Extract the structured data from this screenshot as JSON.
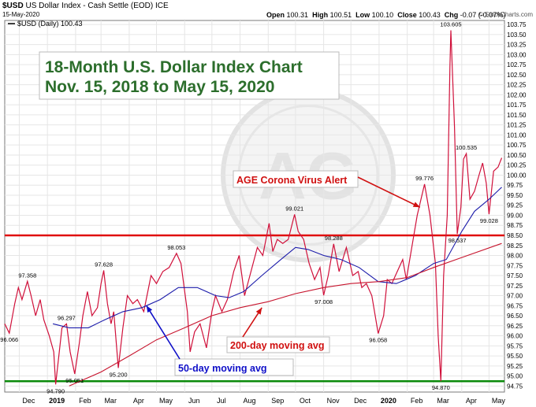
{
  "header": {
    "symbol": "$USD",
    "name": "US Dollar Index - Cash Settle (EOD)",
    "exchange": "ICE",
    "date": "15-May-2020",
    "open_label": "Open",
    "open": "100.31",
    "high_label": "High",
    "high": "100.51",
    "low_label": "Low",
    "low": "100.10",
    "close_label": "Close",
    "close": "100.43",
    "chg_label": "Chg",
    "chg": "-0.07 (-0.07%)",
    "brand": "© StockCharts.com"
  },
  "chart_data": {
    "type": "line",
    "legend": "$USD (Daily) 100.43",
    "title": "18-Month U.S. Dollar Index Chart",
    "subtitle": "Nov. 15, 2018 to May 15, 2020",
    "ylim": [
      94.6,
      103.85
    ],
    "xlim": [
      "2018-11-15",
      "2020-05-18"
    ],
    "grid": true,
    "y_ticks": [
      "94.75",
      "95.00",
      "95.25",
      "95.50",
      "95.75",
      "96.00",
      "96.25",
      "96.50",
      "96.75",
      "97.00",
      "97.25",
      "97.50",
      "97.75",
      "98.00",
      "98.25",
      "98.50",
      "98.75",
      "99.00",
      "99.25",
      "99.50",
      "99.75",
      "100.00",
      "100.25",
      "100.50",
      "100.75",
      "101.00",
      "101.25",
      "101.50",
      "101.75",
      "102.00",
      "102.25",
      "102.50",
      "102.75",
      "103.00",
      "103.25",
      "103.50",
      "103.75"
    ],
    "x_ticks": [
      {
        "label": "Dec",
        "date": "2018-12-01",
        "bold": false
      },
      {
        "label": "2019",
        "date": "2019-01-01",
        "bold": true
      },
      {
        "label": "Feb",
        "date": "2019-02-01",
        "bold": false
      },
      {
        "label": "Mar",
        "date": "2019-03-01",
        "bold": false
      },
      {
        "label": "Apr",
        "date": "2019-04-01",
        "bold": false
      },
      {
        "label": "May",
        "date": "2019-05-01",
        "bold": false
      },
      {
        "label": "Jun",
        "date": "2019-06-01",
        "bold": false
      },
      {
        "label": "Jul",
        "date": "2019-07-01",
        "bold": false
      },
      {
        "label": "Aug",
        "date": "2019-08-01",
        "bold": false
      },
      {
        "label": "Sep",
        "date": "2019-09-01",
        "bold": false
      },
      {
        "label": "Oct",
        "date": "2019-10-01",
        "bold": false
      },
      {
        "label": "Nov",
        "date": "2019-11-01",
        "bold": false
      },
      {
        "label": "Dec",
        "date": "2019-12-01",
        "bold": false
      },
      {
        "label": "2020",
        "date": "2020-01-01",
        "bold": true
      },
      {
        "label": "Feb",
        "date": "2020-02-01",
        "bold": false
      },
      {
        "label": "Mar",
        "date": "2020-03-01",
        "bold": false
      },
      {
        "label": "Apr",
        "date": "2020-04-01",
        "bold": false
      },
      {
        "label": "May",
        "date": "2020-05-01",
        "bold": false
      }
    ],
    "series": [
      {
        "name": "$USD (Daily)",
        "color": "#d0103a",
        "points": [
          [
            "2018-11-15",
            96.3
          ],
          [
            "2018-11-20",
            96.066
          ],
          [
            "2018-11-26",
            96.8
          ],
          [
            "2018-11-30",
            97.2
          ],
          [
            "2018-12-04",
            96.9
          ],
          [
            "2018-12-10",
            97.358
          ],
          [
            "2018-12-14",
            97.0
          ],
          [
            "2018-12-19",
            96.5
          ],
          [
            "2018-12-24",
            96.9
          ],
          [
            "2018-12-28",
            96.4
          ],
          [
            "2019-01-03",
            96.0
          ],
          [
            "2019-01-08",
            95.6
          ],
          [
            "2019-01-10",
            94.79
          ],
          [
            "2019-01-14",
            95.6
          ],
          [
            "2019-01-17",
            96.2
          ],
          [
            "2019-01-22",
            96.297
          ],
          [
            "2019-01-26",
            95.6
          ],
          [
            "2019-01-31",
            95.051
          ],
          [
            "2019-02-05",
            95.8
          ],
          [
            "2019-02-09",
            96.5
          ],
          [
            "2019-02-14",
            97.1
          ],
          [
            "2019-02-19",
            96.5
          ],
          [
            "2019-02-25",
            96.7
          ],
          [
            "2019-03-01",
            97.3
          ],
          [
            "2019-03-04",
            97.628
          ],
          [
            "2019-03-08",
            96.8
          ],
          [
            "2019-03-12",
            96.3
          ],
          [
            "2019-03-15",
            96.6
          ],
          [
            "2019-03-20",
            95.2
          ],
          [
            "2019-03-25",
            96.2
          ],
          [
            "2019-03-30",
            97.0
          ],
          [
            "2019-04-05",
            96.8
          ],
          [
            "2019-04-10",
            96.9
          ],
          [
            "2019-04-17",
            96.6
          ],
          [
            "2019-04-25",
            97.5
          ],
          [
            "2019-05-01",
            97.3
          ],
          [
            "2019-05-08",
            97.6
          ],
          [
            "2019-05-15",
            97.7
          ],
          [
            "2019-05-23",
            98.053
          ],
          [
            "2019-05-28",
            97.8
          ],
          [
            "2019-06-04",
            96.6
          ],
          [
            "2019-06-07",
            95.6
          ],
          [
            "2019-06-12",
            96.1
          ],
          [
            "2019-06-18",
            96.3
          ],
          [
            "2019-06-25",
            95.7
          ],
          [
            "2019-07-01",
            96.6
          ],
          [
            "2019-07-05",
            97.0
          ],
          [
            "2019-07-12",
            96.6
          ],
          [
            "2019-07-18",
            96.9
          ],
          [
            "2019-07-25",
            97.6
          ],
          [
            "2019-07-31",
            98.0
          ],
          [
            "2019-08-06",
            97.0
          ],
          [
            "2019-08-13",
            97.6
          ],
          [
            "2019-08-20",
            98.2
          ],
          [
            "2019-08-26",
            98.0
          ],
          [
            "2019-09-02",
            98.8
          ],
          [
            "2019-09-06",
            98.1
          ],
          [
            "2019-09-11",
            98.4
          ],
          [
            "2019-09-17",
            98.3
          ],
          [
            "2019-09-23",
            98.4
          ],
          [
            "2019-09-30",
            99.021
          ],
          [
            "2019-10-04",
            98.6
          ],
          [
            "2019-10-10",
            98.4
          ],
          [
            "2019-10-16",
            97.8
          ],
          [
            "2019-10-22",
            97.4
          ],
          [
            "2019-10-28",
            97.7
          ],
          [
            "2019-11-01",
            97.008
          ],
          [
            "2019-11-06",
            97.5
          ],
          [
            "2019-11-12",
            98.288
          ],
          [
            "2019-11-18",
            97.6
          ],
          [
            "2019-11-26",
            98.2
          ],
          [
            "2019-12-03",
            97.5
          ],
          [
            "2019-12-09",
            97.6
          ],
          [
            "2019-12-13",
            97.2
          ],
          [
            "2019-12-18",
            97.3
          ],
          [
            "2019-12-24",
            97.0
          ],
          [
            "2019-12-31",
            96.058
          ],
          [
            "2020-01-06",
            96.5
          ],
          [
            "2020-01-10",
            97.4
          ],
          [
            "2020-01-15",
            97.3
          ],
          [
            "2020-01-21",
            97.6
          ],
          [
            "2020-01-27",
            97.9
          ],
          [
            "2020-01-31",
            97.4
          ],
          [
            "2020-02-06",
            98.2
          ],
          [
            "2020-02-12",
            99.0
          ],
          [
            "2020-02-20",
            99.776
          ],
          [
            "2020-02-26",
            99.0
          ],
          [
            "2020-03-03",
            97.8
          ],
          [
            "2020-03-06",
            96.0
          ],
          [
            "2020-03-09",
            94.87
          ],
          [
            "2020-03-12",
            97.5
          ],
          [
            "2020-03-16",
            99.0
          ],
          [
            "2020-03-19",
            102.7
          ],
          [
            "2020-03-20",
            103.605
          ],
          [
            "2020-03-24",
            101.2
          ],
          [
            "2020-03-27",
            98.537
          ],
          [
            "2020-03-31",
            99.2
          ],
          [
            "2020-04-03",
            100.4
          ],
          [
            "2020-04-06",
            100.535
          ],
          [
            "2020-04-10",
            99.4
          ],
          [
            "2020-04-15",
            99.6
          ],
          [
            "2020-04-20",
            100.0
          ],
          [
            "2020-04-24",
            100.3
          ],
          [
            "2020-04-28",
            99.8
          ],
          [
            "2020-05-01",
            99.028
          ],
          [
            "2020-05-06",
            100.1
          ],
          [
            "2020-05-11",
            100.2
          ],
          [
            "2020-05-15",
            100.43
          ]
        ]
      },
      {
        "name": "50-day moving avg",
        "color": "#1b1baa",
        "points": [
          [
            "2019-01-07",
            96.3
          ],
          [
            "2019-01-25",
            96.2
          ],
          [
            "2019-02-15",
            96.2
          ],
          [
            "2019-03-05",
            96.4
          ],
          [
            "2019-03-25",
            96.6
          ],
          [
            "2019-04-15",
            96.7
          ],
          [
            "2019-05-05",
            96.9
          ],
          [
            "2019-05-25",
            97.2
          ],
          [
            "2019-06-15",
            97.2
          ],
          [
            "2019-07-05",
            97.0
          ],
          [
            "2019-07-20",
            96.95
          ],
          [
            "2019-08-05",
            97.1
          ],
          [
            "2019-08-25",
            97.5
          ],
          [
            "2019-09-15",
            97.9
          ],
          [
            "2019-10-01",
            98.2
          ],
          [
            "2019-10-15",
            98.15
          ],
          [
            "2019-11-01",
            98.0
          ],
          [
            "2019-11-20",
            97.9
          ],
          [
            "2019-12-10",
            97.7
          ],
          [
            "2019-12-31",
            97.35
          ],
          [
            "2020-01-20",
            97.3
          ],
          [
            "2020-02-10",
            97.5
          ],
          [
            "2020-03-01",
            97.8
          ],
          [
            "2020-03-15",
            97.9
          ],
          [
            "2020-04-01",
            98.6
          ],
          [
            "2020-04-15",
            99.1
          ],
          [
            "2020-05-01",
            99.4
          ],
          [
            "2020-05-15",
            99.7
          ]
        ]
      },
      {
        "name": "200-day moving avg",
        "color": "#c7152e",
        "points": [
          [
            "2019-01-25",
            94.75
          ],
          [
            "2019-03-01",
            95.1
          ],
          [
            "2019-04-01",
            95.5
          ],
          [
            "2019-05-01",
            95.9
          ],
          [
            "2019-06-01",
            96.2
          ],
          [
            "2019-07-01",
            96.5
          ],
          [
            "2019-08-01",
            96.7
          ],
          [
            "2019-09-01",
            96.85
          ],
          [
            "2019-10-01",
            97.05
          ],
          [
            "2019-11-01",
            97.2
          ],
          [
            "2019-12-01",
            97.3
          ],
          [
            "2020-01-01",
            97.35
          ],
          [
            "2020-02-01",
            97.45
          ],
          [
            "2020-03-01",
            97.7
          ],
          [
            "2020-04-01",
            97.95
          ],
          [
            "2020-05-15",
            98.3
          ]
        ]
      }
    ],
    "point_labels": [
      {
        "text": "96.066",
        "date": "2018-11-20",
        "value": 96.066,
        "pos": "below"
      },
      {
        "text": "97.358",
        "date": "2018-12-10",
        "value": 97.358,
        "pos": "above"
      },
      {
        "text": "94.790",
        "date": "2019-01-10",
        "value": 94.79,
        "pos": "below"
      },
      {
        "text": "96.297",
        "date": "2019-01-22",
        "value": 96.297,
        "pos": "above"
      },
      {
        "text": "95.051",
        "date": "2019-01-31",
        "value": 95.051,
        "pos": "below"
      },
      {
        "text": "97.628",
        "date": "2019-03-04",
        "value": 97.628,
        "pos": "above"
      },
      {
        "text": "95.200",
        "date": "2019-03-20",
        "value": 95.2,
        "pos": "below"
      },
      {
        "text": "98.053",
        "date": "2019-05-23",
        "value": 98.053,
        "pos": "above"
      },
      {
        "text": "99.021",
        "date": "2019-09-30",
        "value": 99.021,
        "pos": "above"
      },
      {
        "text": "97.008",
        "date": "2019-11-01",
        "value": 97.008,
        "pos": "below"
      },
      {
        "text": "98.288",
        "date": "2019-11-12",
        "value": 98.288,
        "pos": "above"
      },
      {
        "text": "96.058",
        "date": "2019-12-31",
        "value": 96.058,
        "pos": "below"
      },
      {
        "text": "99.776",
        "date": "2020-02-20",
        "value": 99.776,
        "pos": "above"
      },
      {
        "text": "94.870",
        "date": "2020-03-09",
        "value": 94.87,
        "pos": "below"
      },
      {
        "text": "103.605",
        "date": "2020-03-20",
        "value": 103.605,
        "pos": "above"
      },
      {
        "text": "98.537",
        "date": "2020-03-27",
        "value": 98.537,
        "pos": "below"
      },
      {
        "text": "100.535",
        "date": "2020-04-06",
        "value": 100.535,
        "pos": "above"
      },
      {
        "text": "99.028",
        "date": "2020-05-01",
        "value": 99.028,
        "pos": "below"
      }
    ],
    "hlines": [
      {
        "value": 98.5,
        "color": "#e01010"
      },
      {
        "value": 94.87,
        "color": "#0a8a0a"
      }
    ],
    "annotations": [
      {
        "text": "AGE Corona Virus Alert",
        "color": "#d01010",
        "arrow_to": {
          "date": "2020-02-15",
          "value": 99.2
        }
      },
      {
        "text": "200-day moving avg",
        "color": "#d01010",
        "arrow_to": {
          "date": "2019-08-25",
          "value": 96.7
        }
      },
      {
        "text": "50-day moving avg",
        "color": "#1010c8",
        "arrow_to": {
          "date": "2019-04-20",
          "value": 96.75
        }
      }
    ],
    "watermark": "AG"
  }
}
